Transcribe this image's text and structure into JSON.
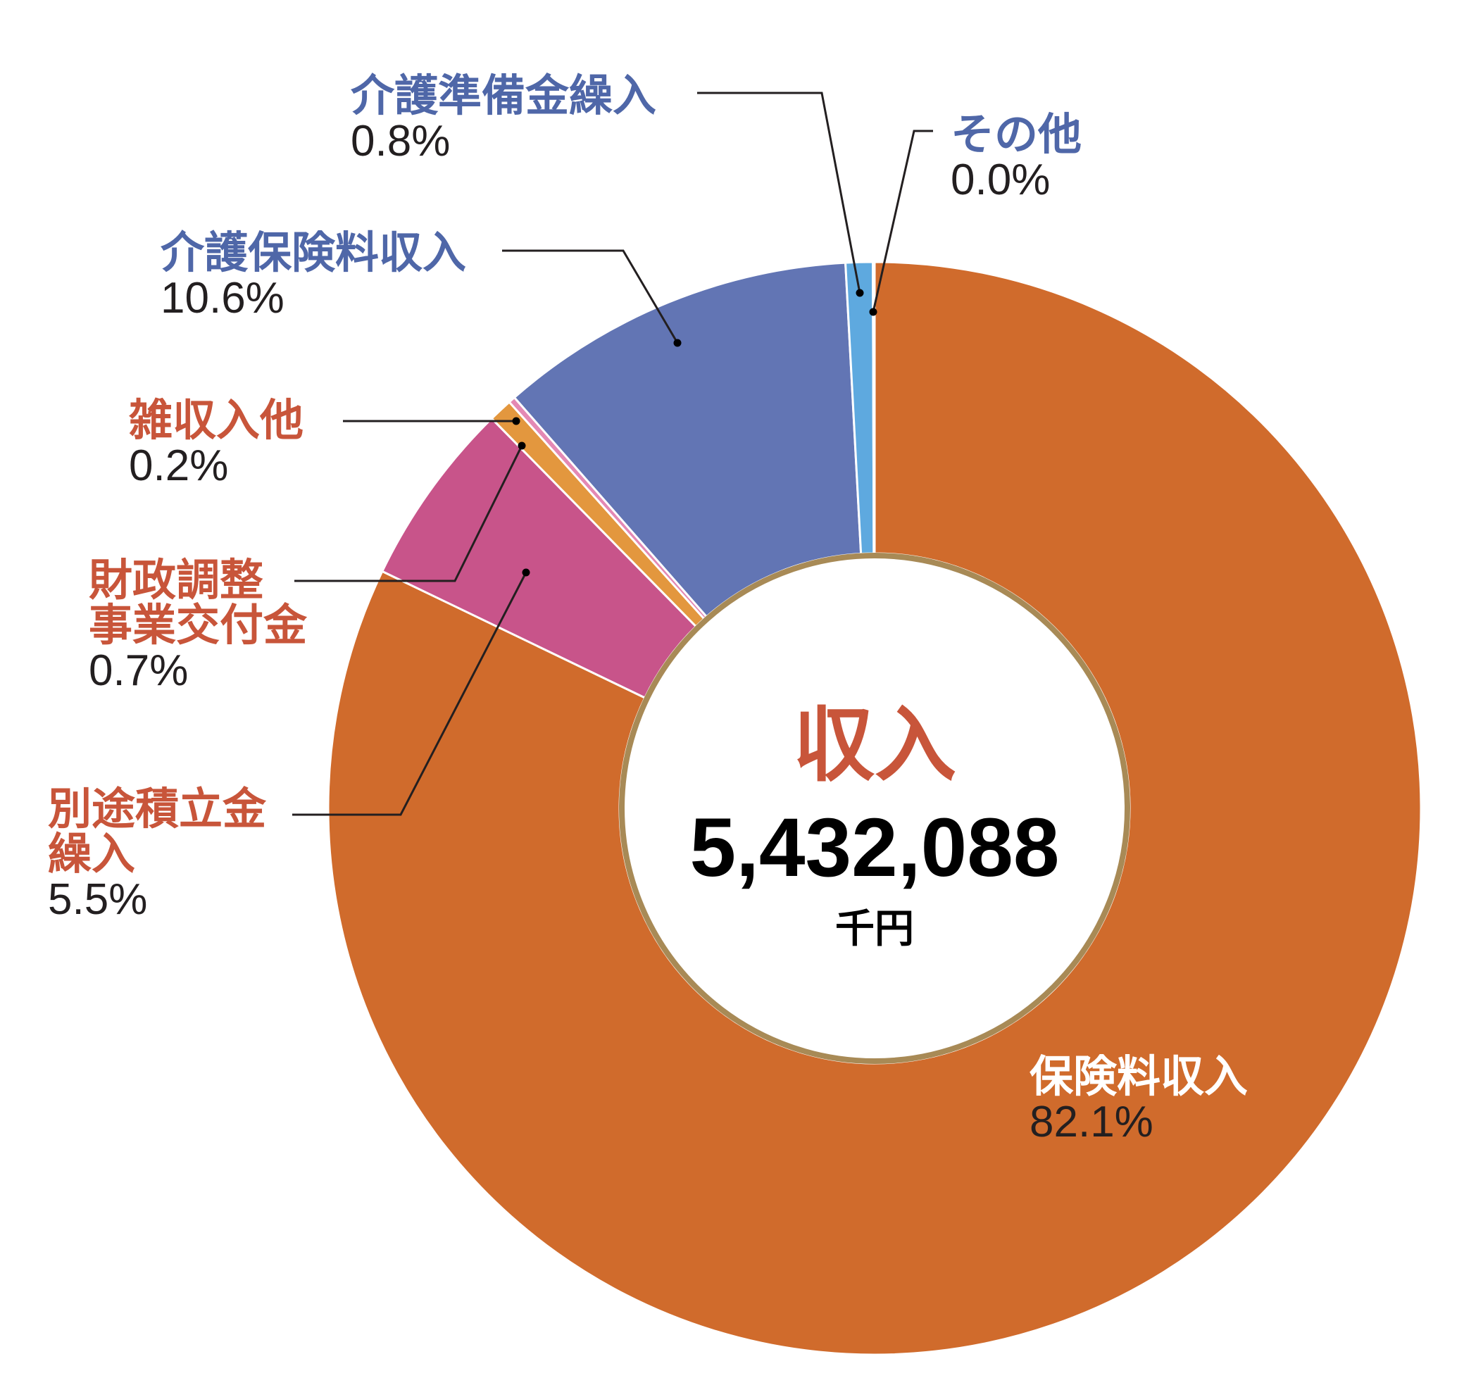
{
  "chart_data": {
    "type": "pie",
    "center": {
      "title": "収入",
      "value": "5,432,088",
      "unit": "千円"
    },
    "slices": [
      {
        "name_lines": [
          "保険料収入"
        ],
        "pct_text": "82.1%",
        "value": 82.1,
        "color": "#d06b2c",
        "label_color": "#ffffff",
        "pct_color": "#231f20"
      },
      {
        "name_lines": [
          "別途積立金",
          "繰入"
        ],
        "pct_text": "5.5%",
        "value": 5.5,
        "color": "#c8548a",
        "label_color": "#c8553a",
        "pct_color": "#231f20"
      },
      {
        "name_lines": [
          "財政調整",
          "事業交付金"
        ],
        "pct_text": "0.7%",
        "value": 0.7,
        "color": "#e3973e",
        "label_color": "#c8553a",
        "pct_color": "#231f20"
      },
      {
        "name_lines": [
          "雑収入他"
        ],
        "pct_text": "0.2%",
        "value": 0.2,
        "color": "#e489b4",
        "label_color": "#c8553a",
        "pct_color": "#231f20"
      },
      {
        "name_lines": [
          "介護保険料収入"
        ],
        "pct_text": "10.6%",
        "value": 10.6,
        "color": "#6275b4",
        "label_color": "#4f67a8",
        "pct_color": "#231f20"
      },
      {
        "name_lines": [
          "介護準備金繰入"
        ],
        "pct_text": "0.8%",
        "value": 0.8,
        "color": "#5ea9df",
        "label_color": "#4f67a8",
        "pct_color": "#231f20"
      },
      {
        "name_lines": [
          "その他"
        ],
        "pct_text": "0.0%",
        "value": 0.05,
        "color": "#c85a2e",
        "label_color": "#4f67a8",
        "pct_color": "#231f20"
      }
    ],
    "center_title_color": "#c8553a",
    "inner_ring_color": "#a88a56",
    "start_angle": "top",
    "direction": "clockwise"
  }
}
